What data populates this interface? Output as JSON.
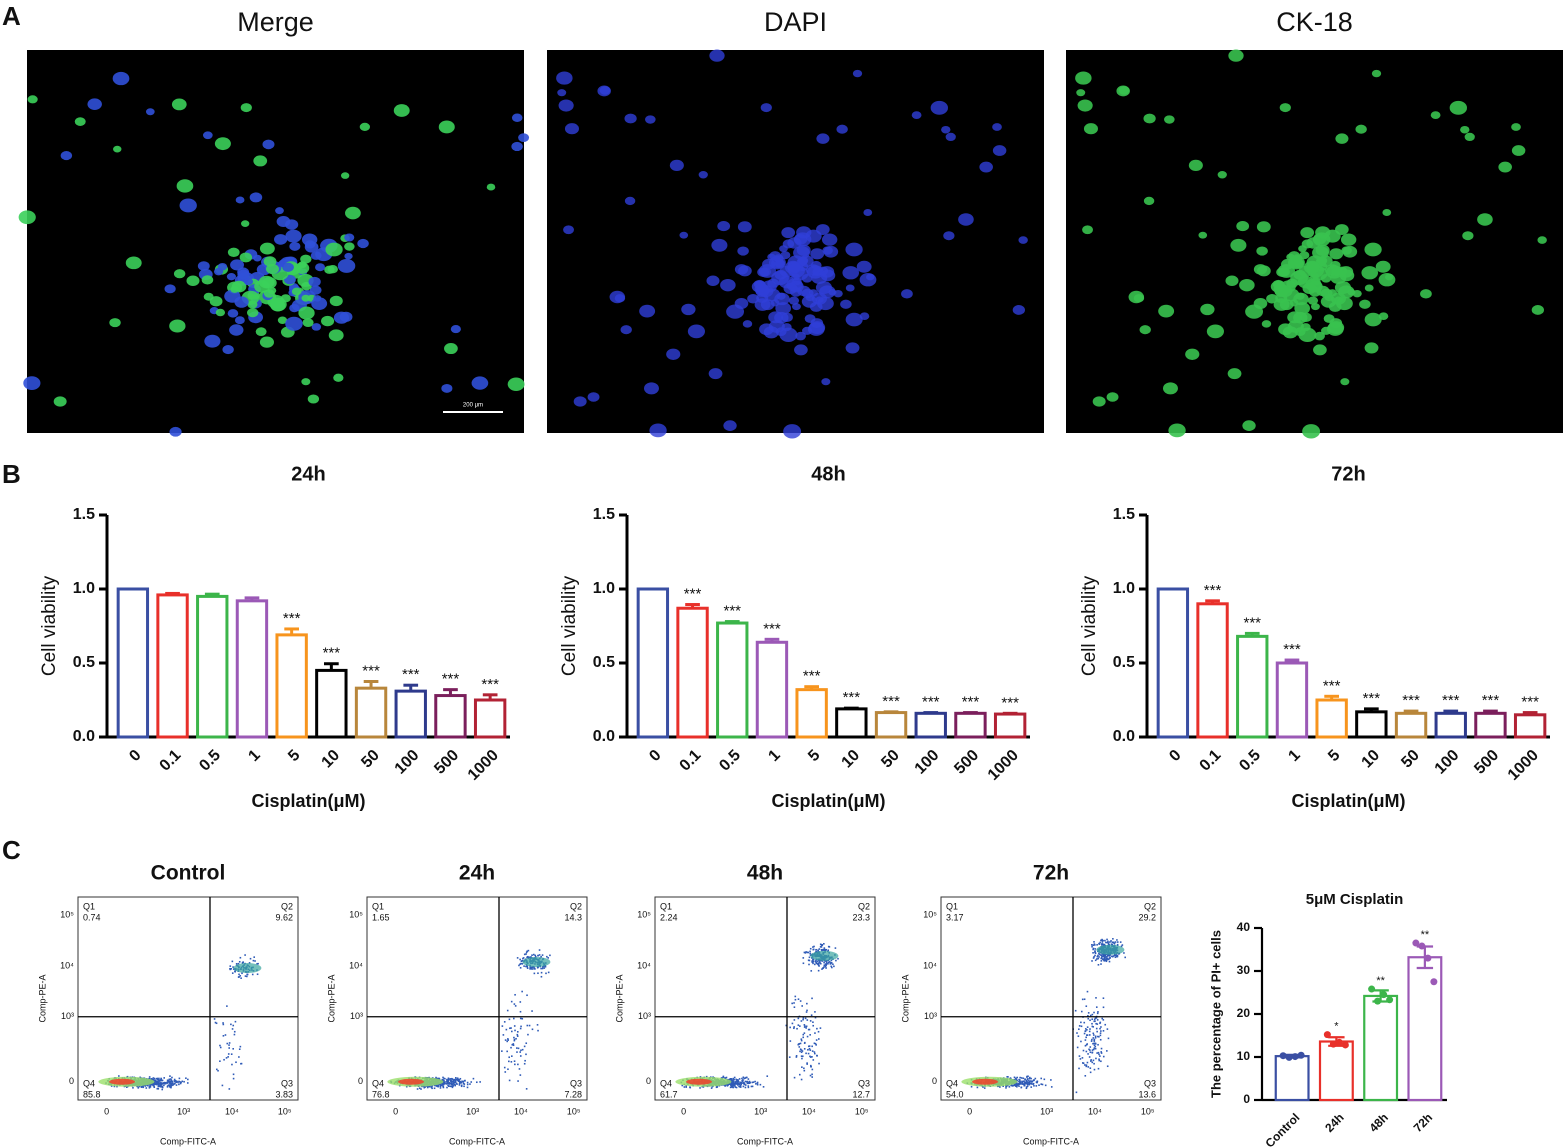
{
  "panel_labels": [
    "A",
    "B",
    "C"
  ],
  "micrographs": [
    {
      "title": "Merge",
      "scale_bar": "200 μm"
    },
    {
      "title": "DAPI"
    },
    {
      "title": "CK-18"
    }
  ],
  "chart_data": [
    {
      "type": "bar",
      "title": "24h",
      "x_label": "Cisplatin(μM)",
      "y_label": "Cell viability",
      "categories": [
        "0",
        "0.1",
        "0.5",
        "1",
        "5",
        "10",
        "50",
        "100",
        "500",
        "1000"
      ],
      "values": [
        1.0,
        0.96,
        0.95,
        0.92,
        0.69,
        0.45,
        0.33,
        0.31,
        0.28,
        0.25
      ],
      "errors": [
        0,
        0.01,
        0.015,
        0.02,
        0.04,
        0.045,
        0.045,
        0.04,
        0.04,
        0.035
      ],
      "annotations": [
        null,
        null,
        null,
        null,
        "***",
        "***",
        "***",
        "***",
        "***",
        "***"
      ],
      "colors": [
        "#3a4fa3",
        "#e8302a",
        "#3cb54a",
        "#9b59b6",
        "#f7941d",
        "#000000",
        "#b8863b",
        "#2e3a8c",
        "#7b1f5c",
        "#b22234"
      ],
      "ylim": [
        0,
        1.5
      ],
      "yticks": [
        {
          "value": 0,
          "label": "0.0"
        },
        {
          "value": 0.5,
          "label": "0.5"
        },
        {
          "value": 1,
          "label": "1.0"
        },
        {
          "value": 1.5,
          "label": "1.5"
        }
      ]
    },
    {
      "type": "bar",
      "title": "48h",
      "x_label": "Cisplatin(μM)",
      "y_label": "Cell viability",
      "categories": [
        "0",
        "0.1",
        "0.5",
        "1",
        "5",
        "10",
        "50",
        "100",
        "500",
        "1000"
      ],
      "values": [
        1.0,
        0.87,
        0.77,
        0.64,
        0.32,
        0.19,
        0.165,
        0.16,
        0.16,
        0.155
      ],
      "errors": [
        0,
        0.025,
        0.01,
        0.02,
        0.02,
        0.005,
        0.005,
        0.005,
        0.005,
        0.005
      ],
      "annotations": [
        null,
        "***",
        "***",
        "***",
        "***",
        "***",
        "***",
        "***",
        "***",
        "***"
      ],
      "colors": [
        "#3a4fa3",
        "#e8302a",
        "#3cb54a",
        "#9b59b6",
        "#f7941d",
        "#000000",
        "#b8863b",
        "#2e3a8c",
        "#7b1f5c",
        "#b22234"
      ],
      "ylim": [
        0,
        1.5
      ],
      "yticks": [
        {
          "value": 0,
          "label": "0.0"
        },
        {
          "value": 0.5,
          "label": "0.5"
        },
        {
          "value": 1,
          "label": "1.0"
        },
        {
          "value": 1.5,
          "label": "1.5"
        }
      ]
    },
    {
      "type": "bar",
      "title": "72h",
      "x_label": "Cisplatin(μM)",
      "y_label": "Cell viability",
      "categories": [
        "0",
        "0.1",
        "0.5",
        "1",
        "5",
        "10",
        "50",
        "100",
        "500",
        "1000"
      ],
      "values": [
        1.0,
        0.9,
        0.68,
        0.5,
        0.25,
        0.17,
        0.16,
        0.16,
        0.16,
        0.15
      ],
      "errors": [
        0,
        0.02,
        0.02,
        0.02,
        0.025,
        0.02,
        0.015,
        0.015,
        0.015,
        0.015
      ],
      "annotations": [
        null,
        "***",
        "***",
        "***",
        "***",
        "***",
        "***",
        "***",
        "***",
        "***"
      ],
      "colors": [
        "#3a4fa3",
        "#e8302a",
        "#3cb54a",
        "#9b59b6",
        "#f7941d",
        "#000000",
        "#b8863b",
        "#2e3a8c",
        "#7b1f5c",
        "#b22234"
      ],
      "ylim": [
        0,
        1.5
      ],
      "yticks": [
        {
          "value": 0,
          "label": "0.0"
        },
        {
          "value": 0.5,
          "label": "0.5"
        },
        {
          "value": 1,
          "label": "1.0"
        },
        {
          "value": 1.5,
          "label": "1.5"
        }
      ]
    },
    {
      "type": "bar",
      "title": "5μM Cisplatin",
      "y_label": "The percentage of PI+ cells",
      "categories": [
        "Control",
        "24h",
        "48h",
        "72h"
      ],
      "values": [
        10.2,
        13.6,
        24.2,
        33.2
      ],
      "errors": [
        0.3,
        1.0,
        1.3,
        2.5
      ],
      "points": [
        [
          10.3,
          9.9,
          10.1,
          10.4
        ],
        [
          15.2,
          13.0,
          13.4,
          12.8
        ],
        [
          25.8,
          23.0,
          24.5,
          23.3
        ],
        [
          36.5,
          35.8,
          33.0,
          27.5
        ]
      ],
      "annotations": [
        null,
        "*",
        "**",
        "**"
      ],
      "colors": [
        "#3a4fa3",
        "#e8302a",
        "#3cb54a",
        "#9b59b6"
      ],
      "ylim": [
        0,
        40
      ],
      "yticks": [
        0,
        10,
        20,
        30,
        40
      ]
    }
  ],
  "flow_plots": {
    "x_label": "Comp-FITC-A",
    "y_label": "Comp-PE-A",
    "x_ticks": [
      "0",
      "10³",
      "10⁴",
      "10⁵"
    ],
    "y_ticks": [
      "0",
      "10³",
      "10⁴",
      "10⁵"
    ],
    "plots": [
      {
        "title": "Control",
        "quadrants": [
          {
            "name": "Q1",
            "value": "0.74"
          },
          {
            "name": "Q2",
            "value": "9.62"
          },
          {
            "name": "Q3",
            "value": "3.83"
          },
          {
            "name": "Q4",
            "value": "85.8"
          }
        ]
      },
      {
        "title": "24h",
        "quadrants": [
          {
            "name": "Q1",
            "value": "1.65"
          },
          {
            "name": "Q2",
            "value": "14.3"
          },
          {
            "name": "Q3",
            "value": "7.28"
          },
          {
            "name": "Q4",
            "value": "76.8"
          }
        ]
      },
      {
        "title": "48h",
        "quadrants": [
          {
            "name": "Q1",
            "value": "2.24"
          },
          {
            "name": "Q2",
            "value": "23.3"
          },
          {
            "name": "Q3",
            "value": "12.7"
          },
          {
            "name": "Q4",
            "value": "61.7"
          }
        ]
      },
      {
        "title": "72h",
        "quadrants": [
          {
            "name": "Q1",
            "value": "3.17"
          },
          {
            "name": "Q2",
            "value": "29.2"
          },
          {
            "name": "Q3",
            "value": "13.6"
          },
          {
            "name": "Q4",
            "value": "54.0"
          }
        ]
      }
    ]
  }
}
